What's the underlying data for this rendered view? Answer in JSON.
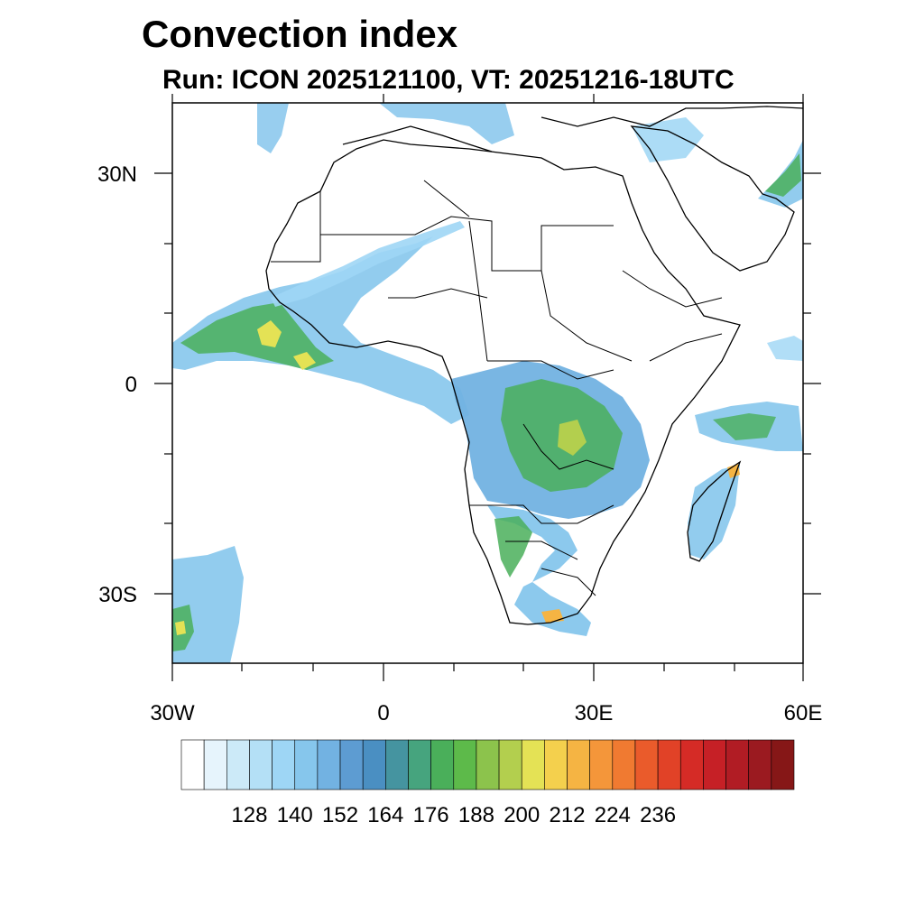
{
  "title": "Convection index",
  "subtitle": "Run: ICON 2025121100,  VT: 20251216-18UTC",
  "map": {
    "region": "Africa",
    "lon_range": [
      -30,
      60
    ],
    "lat_range": [
      -40,
      40
    ],
    "x_tick_labels": [
      "30W",
      "0",
      "30E",
      "60E"
    ],
    "y_tick_labels": [
      "30N",
      "0",
      "30S"
    ]
  },
  "colorbar": {
    "tick_labels": [
      "128",
      "140",
      "152",
      "164",
      "176",
      "188",
      "200",
      "212",
      "224",
      "236"
    ],
    "colors": [
      "#ffffff",
      "#e6f4fc",
      "#cceaf8",
      "#b4e0f6",
      "#9ed6f5",
      "#86c6ec",
      "#72b2e2",
      "#5d9cd2",
      "#4a8fc2",
      "#4594a0",
      "#46a47e",
      "#4aaf5a",
      "#5dba4a",
      "#8cc34c",
      "#b3cf4e",
      "#e4e255",
      "#f4d04d",
      "#f5b443",
      "#f4963a",
      "#f07a31",
      "#ea5b2b",
      "#e14227",
      "#d52b26",
      "#c62026",
      "#b11c24",
      "#9b1a20",
      "#861717"
    ]
  }
}
